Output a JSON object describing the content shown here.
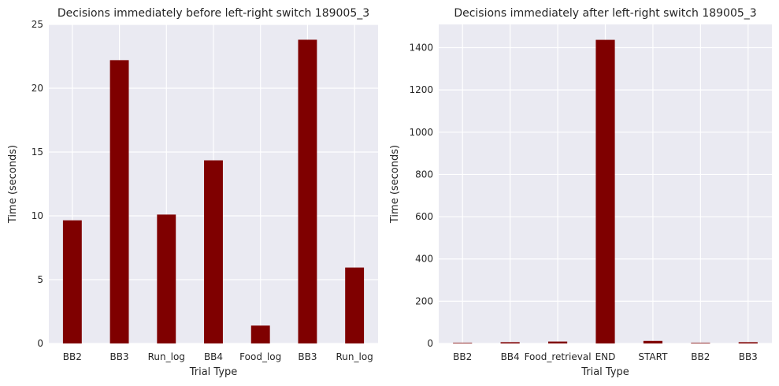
{
  "chart_data": [
    {
      "type": "bar",
      "title": "Decisions immediately before left-right switch 189005_3",
      "xlabel": "Trial Type",
      "ylabel": "Time (seconds)",
      "categories": [
        "BB2",
        "BB3",
        "Run_log",
        "BB4",
        "Food_log",
        "BB3",
        "Run_log"
      ],
      "values": [
        9.65,
        22.2,
        10.1,
        14.35,
        1.4,
        23.8,
        5.95
      ],
      "ylim": [
        0,
        25
      ],
      "yticks": [
        0,
        5,
        10,
        15,
        20,
        25
      ],
      "grid": true,
      "bar_color": "#7f0000",
      "background_color": "#eaeaf2"
    },
    {
      "type": "bar",
      "title": "Decisions immediately after left-right switch 189005_3",
      "xlabel": "Trial Type",
      "ylabel": "Time (seconds)",
      "categories": [
        "BB2",
        "BB4",
        "Food_retrieval",
        "END",
        "START",
        "BB2",
        "BB3"
      ],
      "values": [
        3,
        6,
        9,
        1437,
        12,
        3,
        6
      ],
      "ylim": [
        0,
        1510
      ],
      "yticks": [
        0,
        200,
        400,
        600,
        800,
        1000,
        1200,
        1400
      ],
      "grid": true,
      "bar_color": "#7f0000",
      "background_color": "#eaeaf2"
    }
  ]
}
